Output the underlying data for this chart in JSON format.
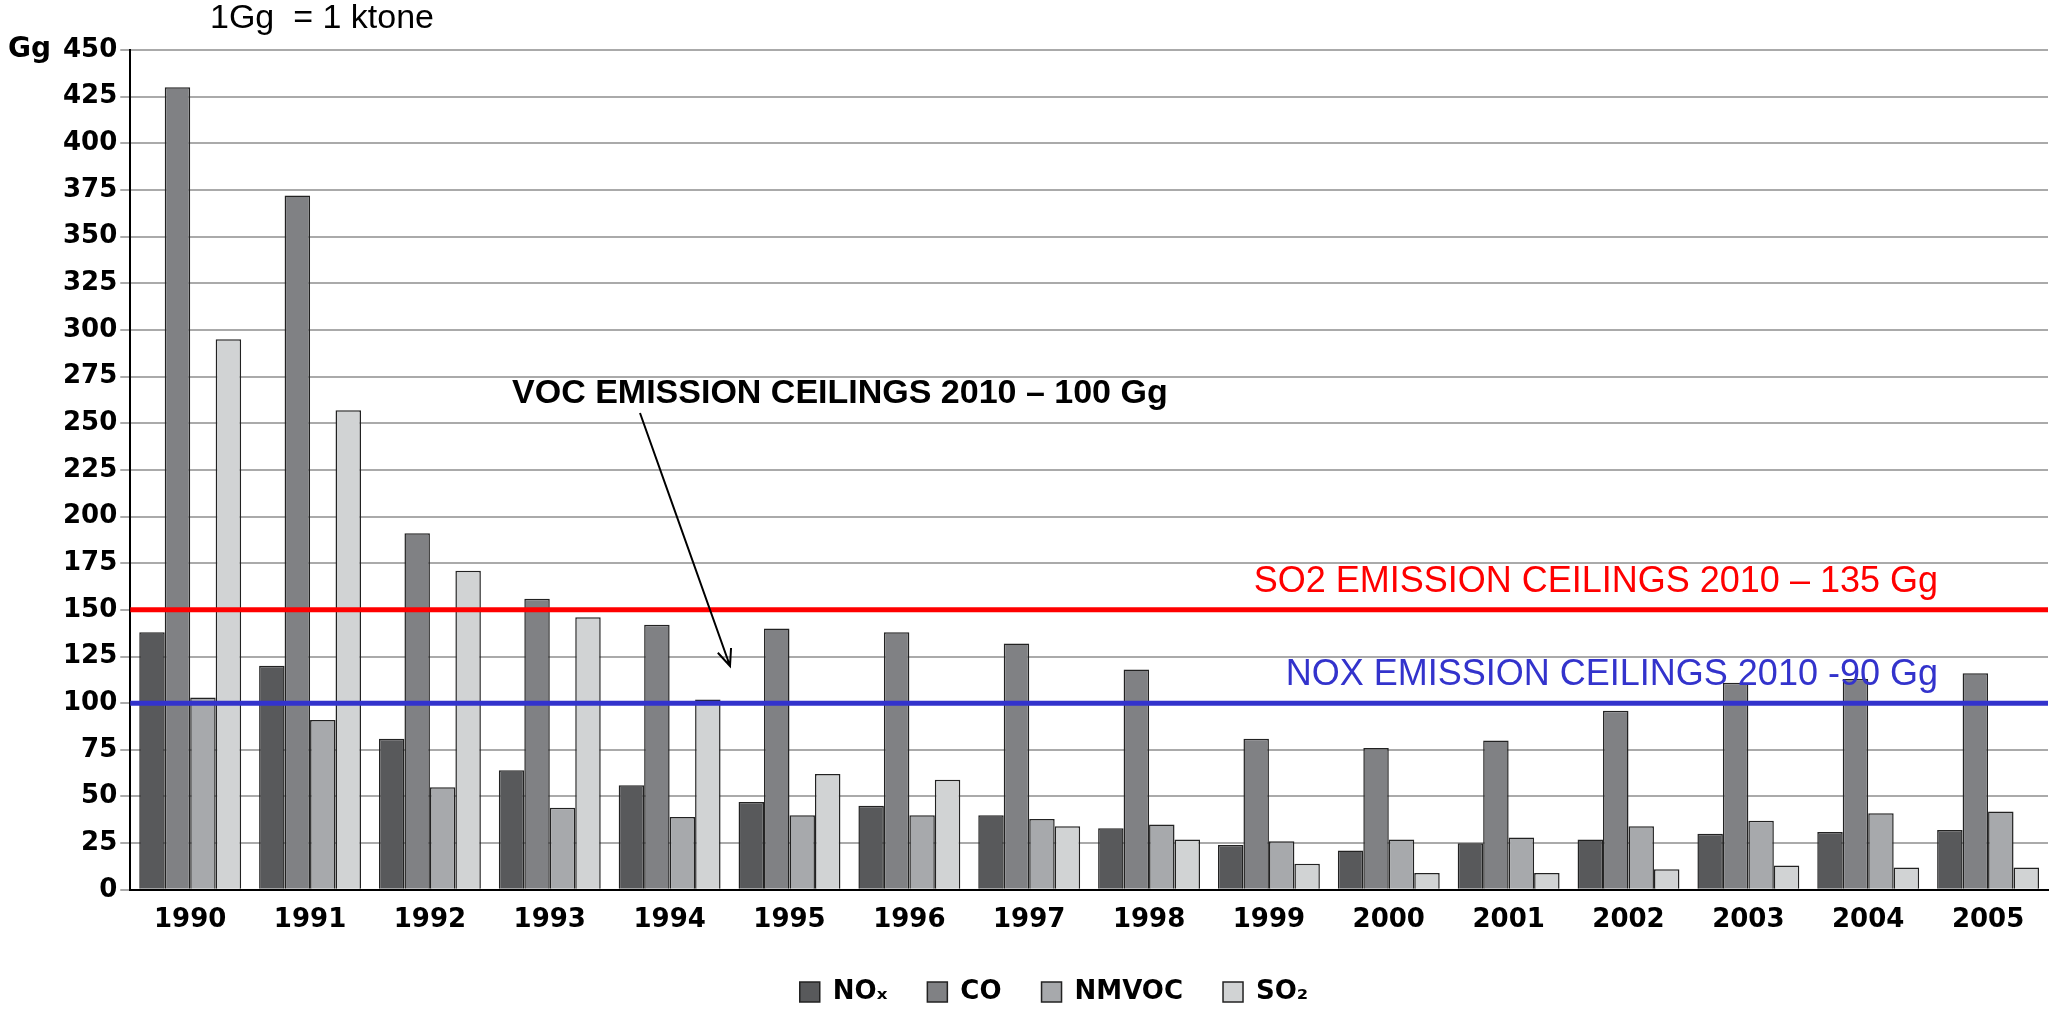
{
  "chart_data": {
    "type": "bar",
    "ylabel": "Gg",
    "categories": [
      "1990",
      "1991",
      "1992",
      "1993",
      "1994",
      "1995",
      "1996",
      "1997",
      "1998",
      "1999",
      "2000",
      "2001",
      "2002",
      "2003",
      "2004",
      "2005"
    ],
    "series": [
      {
        "name": "NOₓ",
        "color": "#58595b",
        "values": [
          138,
          120,
          81,
          64,
          56,
          47,
          45,
          40,
          33,
          24,
          21,
          25,
          27,
          30,
          31,
          32
        ]
      },
      {
        "name": "CO",
        "color": "#808184",
        "values": [
          430,
          372,
          191,
          156,
          142,
          140,
          138,
          132,
          118,
          81,
          76,
          80,
          96,
          111,
          113,
          116
        ]
      },
      {
        "name": "NMVOC",
        "color": "#a7a9ac",
        "values": [
          103,
          91,
          55,
          44,
          39,
          40,
          40,
          38,
          35,
          26,
          27,
          28,
          34,
          37,
          41,
          42
        ]
      },
      {
        "name": "SO₂",
        "color": "#d1d3d4",
        "values": [
          295,
          257,
          171,
          146,
          102,
          62,
          59,
          34,
          27,
          14,
          9,
          9,
          11,
          13,
          12,
          12
        ]
      }
    ],
    "ylim": [
      0,
      450
    ],
    "yticks": [
      0,
      25,
      50,
      75,
      100,
      125,
      150,
      175,
      200,
      225,
      250,
      275,
      300,
      325,
      350,
      375,
      400,
      425,
      450
    ],
    "grid": "y",
    "legend": "bottom",
    "ref_lines": [
      {
        "axis": "y",
        "value": 150,
        "label": "SO2 EMISSION CEILINGS 2010 – 135 Gg",
        "color": "#ff0000"
      },
      {
        "axis": "y",
        "value": 100,
        "label": "NOX EMISSION CEILINGS 2010 -90 Gg",
        "color": "#3333cc"
      }
    ],
    "annotations": [
      "1Gg  = 1 ktone",
      "VOC EMISSION CEILINGS 2010 – 100 Gg"
    ]
  }
}
